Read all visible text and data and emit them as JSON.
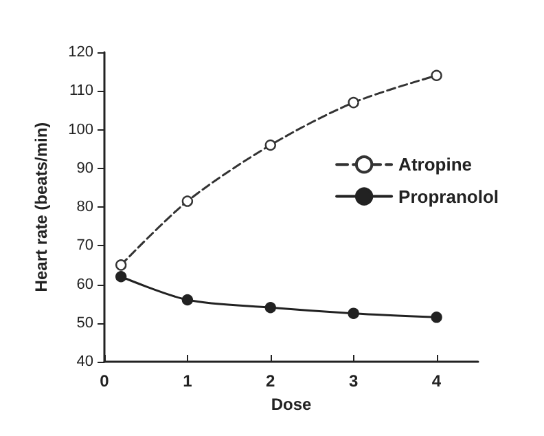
{
  "chart_data": {
    "type": "line",
    "xlabel": "Dose",
    "ylabel": "Heart rate (beats/min)",
    "x": [
      0.2,
      1,
      2,
      3,
      4
    ],
    "xlim": [
      0,
      4.5
    ],
    "xticks": [
      0,
      1,
      2,
      3,
      4
    ],
    "ylim": [
      40,
      120
    ],
    "yticks": [
      40,
      50,
      60,
      70,
      80,
      90,
      100,
      110,
      120
    ],
    "legend": "right",
    "grid": false,
    "series": [
      {
        "name": "Atropine",
        "color": "#333333",
        "values": [
          65,
          81.5,
          96,
          107,
          114
        ],
        "marker": "circle",
        "line_style": "dashed"
      },
      {
        "name": "Propranolol",
        "color": "#222222",
        "values": [
          62,
          56,
          54,
          52.5,
          51.5
        ],
        "marker": "circle",
        "line_style": "solid"
      }
    ]
  }
}
